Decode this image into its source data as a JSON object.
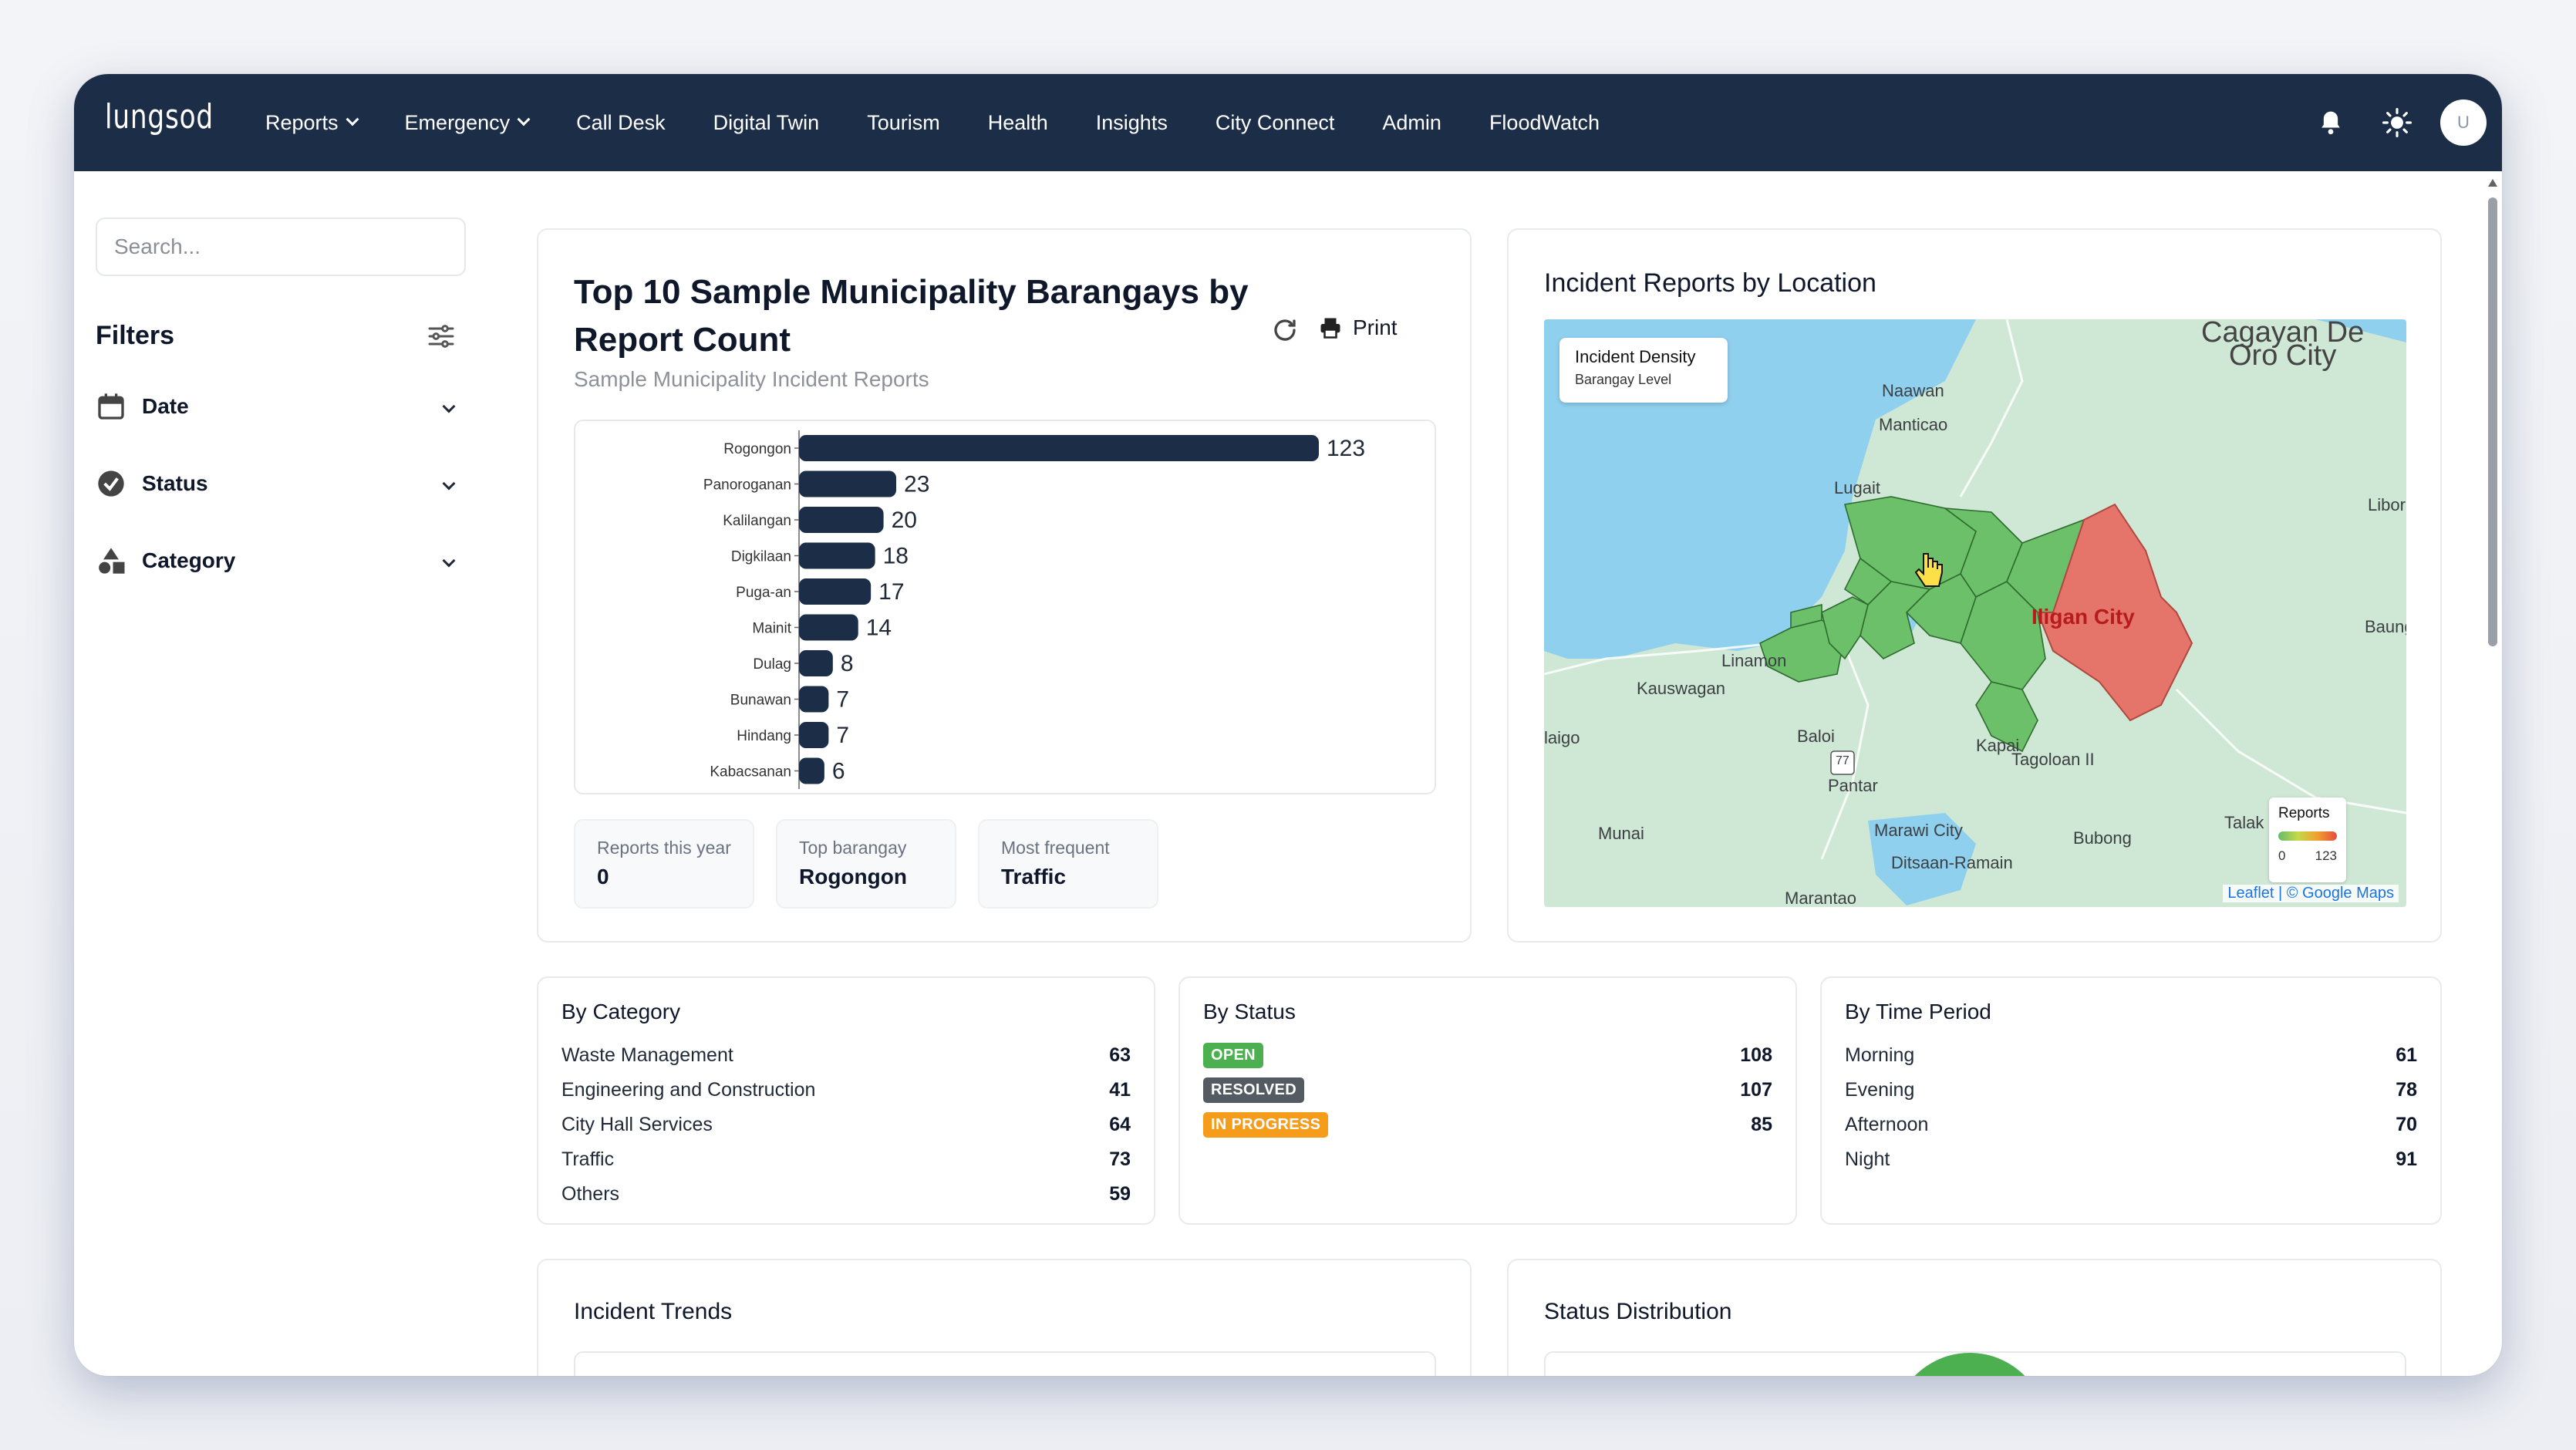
{
  "app": {
    "logo": "lungsod"
  },
  "nav": {
    "items": [
      {
        "label": "Reports",
        "dropdown": true
      },
      {
        "label": "Emergency",
        "dropdown": true
      },
      {
        "label": "Call Desk"
      },
      {
        "label": "Digital Twin"
      },
      {
        "label": "Tourism"
      },
      {
        "label": "Health"
      },
      {
        "label": "Insights"
      },
      {
        "label": "City Connect"
      },
      {
        "label": "Admin"
      },
      {
        "label": "FloodWatch"
      }
    ],
    "avatar": "U",
    "icons": [
      "bell-icon",
      "sun-icon"
    ]
  },
  "sidebar": {
    "search_placeholder": "Search...",
    "filters_title": "Filters",
    "filters": [
      {
        "label": "Date",
        "icon": "calendar-icon"
      },
      {
        "label": "Status",
        "icon": "check-circle-icon"
      },
      {
        "label": "Category",
        "icon": "shapes-icon"
      }
    ]
  },
  "top10": {
    "title": "Top 10 Sample Municipality Barangays by Report Count",
    "subtitle": "Sample Municipality Incident Reports",
    "print_label": "Print",
    "stats": [
      {
        "label": "Reports this year",
        "value": "0"
      },
      {
        "label": "Top barangay",
        "value": "Rogongon"
      },
      {
        "label": "Most frequent",
        "value": "Traffic"
      }
    ]
  },
  "chart_data": {
    "type": "bar",
    "orientation": "horizontal",
    "categories": [
      "Rogongon",
      "Panoroganan",
      "Kalilangan",
      "Digkilaan",
      "Puga-an",
      "Mainit",
      "Dulag",
      "Bunawan",
      "Hindang",
      "Kabacsanan"
    ],
    "values": [
      123,
      23,
      20,
      18,
      17,
      14,
      8,
      7,
      7,
      6
    ],
    "bar_color": "#1c2d47"
  },
  "map": {
    "title": "Incident Reports by Location",
    "density_title": "Incident Density",
    "density_sub": "Barangay Level",
    "legend_title": "Reports",
    "legend_min": "0",
    "legend_max": "123",
    "attribution": "Leaflet | © Google Maps",
    "labels": [
      {
        "text": "Cagayan De"
      },
      {
        "text": "Oro City"
      },
      {
        "text": "Naawan"
      },
      {
        "text": "Manticao"
      },
      {
        "text": "Lugait"
      },
      {
        "text": "Libor"
      },
      {
        "text": "Iligan City"
      },
      {
        "text": "Baung"
      },
      {
        "text": "Linamon"
      },
      {
        "text": "Kauswagan"
      },
      {
        "text": "Baloi"
      },
      {
        "text": "Kapai"
      },
      {
        "text": "Tagoloan II"
      },
      {
        "text": "laigo"
      },
      {
        "text": "Pantar"
      },
      {
        "text": "Talak"
      },
      {
        "text": "Munai"
      },
      {
        "text": "Marawi City"
      },
      {
        "text": "Bubong"
      },
      {
        "text": "Ditsaan-Ramain"
      },
      {
        "text": "Marantao"
      },
      {
        "text": "77"
      }
    ]
  },
  "by_category": {
    "title": "By Category",
    "rows": [
      {
        "label": "Waste Management",
        "value": "63"
      },
      {
        "label": "Engineering and Construction",
        "value": "41"
      },
      {
        "label": "City Hall Services",
        "value": "64"
      },
      {
        "label": "Traffic",
        "value": "73"
      },
      {
        "label": "Others",
        "value": "59"
      }
    ]
  },
  "by_status": {
    "title": "By Status",
    "rows": [
      {
        "label": "OPEN",
        "value": "108",
        "color": "#4caf50"
      },
      {
        "label": "RESOLVED",
        "value": "107",
        "color": "#555b63"
      },
      {
        "label": "IN PROGRESS",
        "value": "85",
        "color": "#f59c1a"
      }
    ]
  },
  "by_time": {
    "title": "By Time Period",
    "rows": [
      {
        "label": "Morning",
        "value": "61"
      },
      {
        "label": "Evening",
        "value": "78"
      },
      {
        "label": "Afternoon",
        "value": "70"
      },
      {
        "label": "Night",
        "value": "91"
      }
    ]
  },
  "trends": {
    "title": "Incident Trends"
  },
  "distribution": {
    "title": "Status Distribution"
  }
}
